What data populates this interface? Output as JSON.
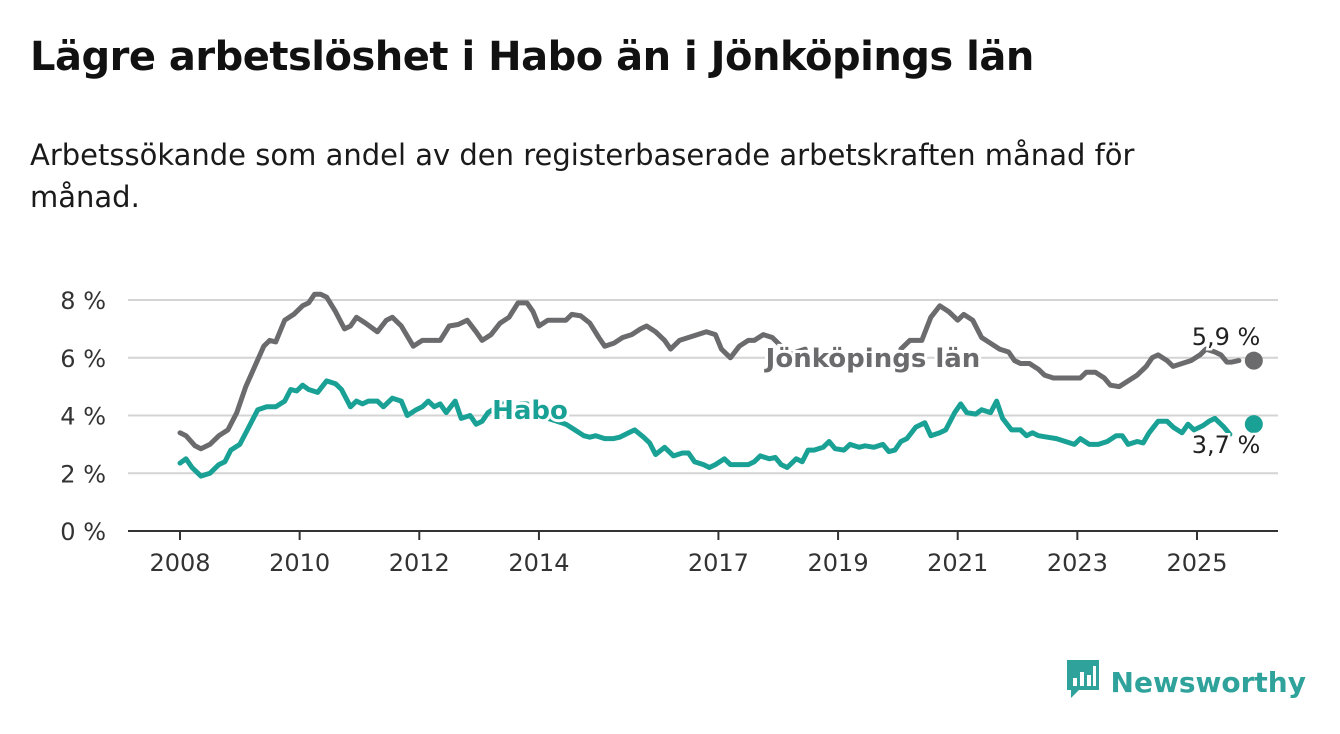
{
  "title": "Lägre arbetslöshet i Habo än i Jönköpings län",
  "subtitle": "Arbetssökande som andel av den registerbaserade arbetskraften månad för månad.",
  "brand": {
    "name": "Newsworthy",
    "icon": "newsworthy-logo-icon",
    "color": "#2fa39b"
  },
  "chart_data": {
    "type": "line",
    "title": "Lägre arbetslöshet i Habo än i Jönköpings län",
    "ylim": [
      0,
      8
    ],
    "yticks": [
      0,
      2,
      4,
      6,
      8
    ],
    "ytick_labels": [
      "0 %",
      "2 %",
      "4 %",
      "6 %",
      "8 %"
    ],
    "xlim": [
      2007.5,
      2026.35
    ],
    "xticks": [
      2008,
      2010,
      2012,
      2014,
      2017,
      2019,
      2021,
      2023,
      2025
    ],
    "xtick_labels": [
      "2008",
      "2010",
      "2012",
      "2014",
      "2017",
      "2019",
      "2021",
      "2023",
      "2025"
    ],
    "grid": true,
    "series": [
      {
        "name": "Jönköpings län",
        "color": "#6b6b6d",
        "end_label": "5,9 %",
        "points": [
          [
            2008.0,
            3.4
          ],
          [
            2008.1,
            3.3
          ],
          [
            2008.25,
            2.95
          ],
          [
            2008.35,
            2.85
          ],
          [
            2008.5,
            3.0
          ],
          [
            2008.65,
            3.3
          ],
          [
            2008.8,
            3.5
          ],
          [
            2008.95,
            4.1
          ],
          [
            2009.1,
            5.0
          ],
          [
            2009.25,
            5.7
          ],
          [
            2009.4,
            6.4
          ],
          [
            2009.5,
            6.6
          ],
          [
            2009.6,
            6.55
          ],
          [
            2009.75,
            7.3
          ],
          [
            2009.9,
            7.5
          ],
          [
            2010.05,
            7.8
          ],
          [
            2010.15,
            7.9
          ],
          [
            2010.25,
            8.2
          ],
          [
            2010.35,
            8.2
          ],
          [
            2010.45,
            8.1
          ],
          [
            2010.6,
            7.6
          ],
          [
            2010.75,
            7.0
          ],
          [
            2010.85,
            7.1
          ],
          [
            2010.95,
            7.4
          ],
          [
            2011.1,
            7.2
          ],
          [
            2011.3,
            6.9
          ],
          [
            2011.45,
            7.3
          ],
          [
            2011.55,
            7.4
          ],
          [
            2011.7,
            7.1
          ],
          [
            2011.9,
            6.4
          ],
          [
            2012.05,
            6.6
          ],
          [
            2012.2,
            6.6
          ],
          [
            2012.35,
            6.6
          ],
          [
            2012.5,
            7.1
          ],
          [
            2012.65,
            7.15
          ],
          [
            2012.8,
            7.3
          ],
          [
            2012.95,
            6.9
          ],
          [
            2013.05,
            6.6
          ],
          [
            2013.2,
            6.8
          ],
          [
            2013.35,
            7.2
          ],
          [
            2013.5,
            7.4
          ],
          [
            2013.65,
            7.9
          ],
          [
            2013.8,
            7.9
          ],
          [
            2013.9,
            7.6
          ],
          [
            2014.0,
            7.1
          ],
          [
            2014.15,
            7.3
          ],
          [
            2014.3,
            7.3
          ],
          [
            2014.45,
            7.3
          ],
          [
            2014.55,
            7.5
          ],
          [
            2014.7,
            7.45
          ],
          [
            2014.85,
            7.2
          ],
          [
            2015.0,
            6.7
          ],
          [
            2015.1,
            6.4
          ],
          [
            2015.25,
            6.5
          ],
          [
            2015.4,
            6.7
          ],
          [
            2015.55,
            6.8
          ],
          [
            2015.7,
            7.0
          ],
          [
            2015.8,
            7.1
          ],
          [
            2015.95,
            6.9
          ],
          [
            2016.1,
            6.6
          ],
          [
            2016.2,
            6.3
          ],
          [
            2016.35,
            6.6
          ],
          [
            2016.5,
            6.7
          ],
          [
            2016.65,
            6.8
          ],
          [
            2016.8,
            6.9
          ],
          [
            2016.95,
            6.8
          ],
          [
            2017.05,
            6.3
          ],
          [
            2017.2,
            6.0
          ],
          [
            2017.35,
            6.4
          ],
          [
            2017.5,
            6.6
          ],
          [
            2017.6,
            6.6
          ],
          [
            2017.75,
            6.8
          ],
          [
            2017.9,
            6.7
          ],
          [
            2018.05,
            6.4
          ],
          [
            2018.2,
            6.1
          ],
          [
            2018.3,
            6.2
          ],
          [
            2018.45,
            6.3
          ]
        ],
        "points_after_label": [
          [
            2020.05,
            6.3
          ],
          [
            2020.2,
            6.6
          ],
          [
            2020.4,
            6.6
          ],
          [
            2020.55,
            7.4
          ],
          [
            2020.7,
            7.8
          ],
          [
            2020.85,
            7.6
          ],
          [
            2021.0,
            7.3
          ],
          [
            2021.1,
            7.5
          ],
          [
            2021.25,
            7.3
          ],
          [
            2021.4,
            6.7
          ],
          [
            2021.55,
            6.5
          ],
          [
            2021.7,
            6.3
          ],
          [
            2021.85,
            6.2
          ],
          [
            2021.95,
            5.9
          ],
          [
            2022.05,
            5.8
          ],
          [
            2022.2,
            5.8
          ],
          [
            2022.35,
            5.6
          ],
          [
            2022.45,
            5.4
          ],
          [
            2022.6,
            5.3
          ],
          [
            2022.75,
            5.3
          ],
          [
            2022.9,
            5.3
          ],
          [
            2023.05,
            5.3
          ],
          [
            2023.15,
            5.5
          ],
          [
            2023.3,
            5.5
          ],
          [
            2023.45,
            5.3
          ],
          [
            2023.55,
            5.05
          ],
          [
            2023.7,
            5.0
          ],
          [
            2023.85,
            5.2
          ],
          [
            2024.0,
            5.4
          ],
          [
            2024.15,
            5.7
          ],
          [
            2024.25,
            6.0
          ],
          [
            2024.35,
            6.1
          ],
          [
            2024.5,
            5.9
          ],
          [
            2024.6,
            5.7
          ],
          [
            2024.75,
            5.8
          ],
          [
            2024.9,
            5.9
          ],
          [
            2025.05,
            6.1
          ],
          [
            2025.15,
            6.3
          ],
          [
            2025.3,
            6.2
          ],
          [
            2025.4,
            6.1
          ],
          [
            2025.5,
            5.85
          ],
          [
            2025.58,
            5.85
          ],
          [
            2025.7,
            5.9
          ]
        ]
      },
      {
        "name": "Habo",
        "color": "#1aa195",
        "end_label": "3,7 %",
        "points": [
          [
            2008.0,
            2.35
          ],
          [
            2008.1,
            2.5
          ],
          [
            2008.2,
            2.2
          ],
          [
            2008.35,
            1.9
          ],
          [
            2008.5,
            2.0
          ],
          [
            2008.65,
            2.3
          ],
          [
            2008.75,
            2.4
          ],
          [
            2008.85,
            2.8
          ],
          [
            2009.0,
            3.0
          ],
          [
            2009.15,
            3.6
          ],
          [
            2009.3,
            4.2
          ],
          [
            2009.45,
            4.3
          ],
          [
            2009.6,
            4.3
          ],
          [
            2009.75,
            4.5
          ],
          [
            2009.85,
            4.9
          ],
          [
            2009.95,
            4.85
          ],
          [
            2010.05,
            5.05
          ],
          [
            2010.15,
            4.9
          ],
          [
            2010.3,
            4.8
          ],
          [
            2010.45,
            5.2
          ],
          [
            2010.6,
            5.1
          ],
          [
            2010.7,
            4.9
          ],
          [
            2010.85,
            4.3
          ],
          [
            2010.95,
            4.5
          ],
          [
            2011.05,
            4.4
          ],
          [
            2011.15,
            4.5
          ],
          [
            2011.3,
            4.5
          ],
          [
            2011.4,
            4.3
          ],
          [
            2011.55,
            4.6
          ],
          [
            2011.7,
            4.5
          ],
          [
            2011.8,
            4.0
          ],
          [
            2011.95,
            4.2
          ],
          [
            2012.05,
            4.3
          ],
          [
            2012.15,
            4.5
          ],
          [
            2012.25,
            4.3
          ],
          [
            2012.35,
            4.4
          ],
          [
            2012.45,
            4.1
          ],
          [
            2012.6,
            4.5
          ],
          [
            2012.7,
            3.9
          ],
          [
            2012.85,
            4.0
          ],
          [
            2012.95,
            3.7
          ],
          [
            2013.05,
            3.8
          ],
          [
            2013.15,
            4.1
          ],
          [
            2013.3,
            4.3
          ],
          [
            2013.4,
            4.4
          ],
          [
            2013.5,
            4.2
          ],
          [
            2013.6,
            4.25
          ],
          [
            2013.7,
            4.4
          ],
          [
            2013.8,
            4.4
          ]
        ],
        "points_after_label": [
          [
            2014.05,
            4.0
          ],
          [
            2014.15,
            3.9
          ],
          [
            2014.3,
            3.8
          ],
          [
            2014.45,
            3.7
          ],
          [
            2014.6,
            3.5
          ],
          [
            2014.75,
            3.3
          ],
          [
            2014.85,
            3.25
          ],
          [
            2014.95,
            3.3
          ],
          [
            2015.1,
            3.2
          ],
          [
            2015.25,
            3.2
          ],
          [
            2015.35,
            3.25
          ],
          [
            2015.5,
            3.4
          ],
          [
            2015.6,
            3.5
          ],
          [
            2015.75,
            3.25
          ],
          [
            2015.85,
            3.05
          ],
          [
            2015.95,
            2.65
          ],
          [
            2016.1,
            2.9
          ],
          [
            2016.25,
            2.6
          ],
          [
            2016.4,
            2.7
          ],
          [
            2016.5,
            2.7
          ],
          [
            2016.6,
            2.4
          ],
          [
            2016.75,
            2.3
          ],
          [
            2016.85,
            2.2
          ],
          [
            2016.95,
            2.3
          ],
          [
            2017.1,
            2.5
          ],
          [
            2017.2,
            2.3
          ],
          [
            2017.35,
            2.3
          ],
          [
            2017.5,
            2.3
          ],
          [
            2017.6,
            2.4
          ],
          [
            2017.7,
            2.6
          ],
          [
            2017.85,
            2.5
          ],
          [
            2017.95,
            2.55
          ],
          [
            2018.05,
            2.3
          ],
          [
            2018.15,
            2.2
          ],
          [
            2018.3,
            2.5
          ],
          [
            2018.4,
            2.4
          ],
          [
            2018.5,
            2.8
          ],
          [
            2018.6,
            2.8
          ],
          [
            2018.75,
            2.9
          ],
          [
            2018.85,
            3.1
          ],
          [
            2018.95,
            2.85
          ],
          [
            2019.1,
            2.8
          ],
          [
            2019.2,
            3.0
          ],
          [
            2019.35,
            2.9
          ],
          [
            2019.45,
            2.95
          ],
          [
            2019.6,
            2.9
          ],
          [
            2019.75,
            3.0
          ],
          [
            2019.85,
            2.75
          ],
          [
            2019.95,
            2.8
          ],
          [
            2020.05,
            3.1
          ],
          [
            2020.15,
            3.2
          ],
          [
            2020.3,
            3.6
          ],
          [
            2020.45,
            3.75
          ],
          [
            2020.55,
            3.3
          ],
          [
            2020.7,
            3.4
          ],
          [
            2020.8,
            3.5
          ],
          [
            2020.95,
            4.1
          ],
          [
            2021.05,
            4.4
          ],
          [
            2021.15,
            4.1
          ],
          [
            2021.3,
            4.05
          ],
          [
            2021.4,
            4.2
          ],
          [
            2021.55,
            4.1
          ],
          [
            2021.65,
            4.5
          ],
          [
            2021.75,
            3.9
          ],
          [
            2021.9,
            3.5
          ],
          [
            2022.05,
            3.5
          ],
          [
            2022.15,
            3.3
          ],
          [
            2022.25,
            3.4
          ],
          [
            2022.35,
            3.3
          ],
          [
            2022.5,
            3.25
          ],
          [
            2022.65,
            3.2
          ],
          [
            2022.8,
            3.1
          ],
          [
            2022.95,
            3.0
          ],
          [
            2023.05,
            3.2
          ],
          [
            2023.2,
            3.0
          ],
          [
            2023.35,
            3.0
          ],
          [
            2023.5,
            3.1
          ],
          [
            2023.65,
            3.3
          ],
          [
            2023.75,
            3.3
          ],
          [
            2023.85,
            3.0
          ],
          [
            2024.0,
            3.1
          ],
          [
            2024.1,
            3.05
          ],
          [
            2024.2,
            3.4
          ],
          [
            2024.35,
            3.8
          ],
          [
            2024.5,
            3.8
          ],
          [
            2024.6,
            3.6
          ],
          [
            2024.75,
            3.4
          ],
          [
            2024.85,
            3.7
          ],
          [
            2024.95,
            3.5
          ],
          [
            2025.1,
            3.65
          ],
          [
            2025.2,
            3.8
          ],
          [
            2025.3,
            3.9
          ],
          [
            2025.45,
            3.6
          ],
          [
            2025.55,
            3.35
          ]
        ]
      }
    ],
    "endpoints": [
      {
        "series": "Jönköpings län",
        "x": 2025.95,
        "y": 5.9
      },
      {
        "series": "Habo",
        "x": 2025.95,
        "y": 3.7
      }
    ]
  }
}
